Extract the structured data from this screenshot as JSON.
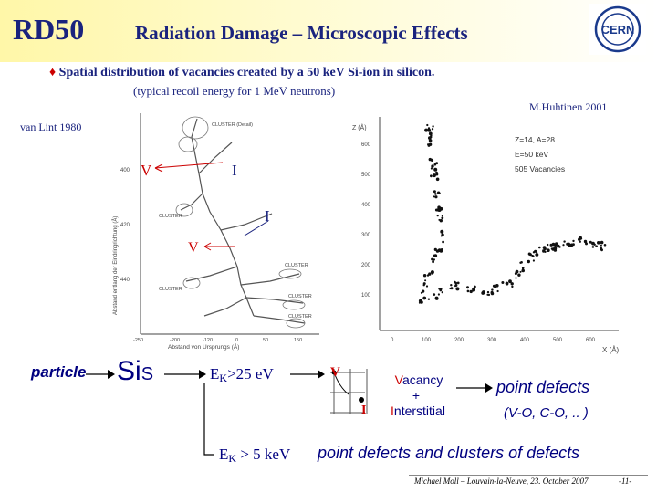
{
  "header": {
    "logo_text": "RD50",
    "title": "Radiation Damage – Microscopic Effects",
    "cern_logo_text": "CERN"
  },
  "intro": {
    "bullet_text": "Spatial distribution of vacancies created by a 50 keV Si-ion in silicon.",
    "sub_text": "(typical recoil energy for 1 MeV neutrons)"
  },
  "left_figure": {
    "citation": "van Lint 1980",
    "labels": {
      "v_upper": "V",
      "i_upper": "I",
      "i_lower": "I",
      "v_lower": "V"
    },
    "clusters": [
      "CLUSTER (Detail)",
      "CLUSTER",
      "CLUSTER",
      "CLUSTER",
      "CLUSTER",
      "CLUSTER"
    ],
    "y_axis_label": "Abstand entlang der Eindringrichtung (Å)",
    "x_axis_label": "Abstand von Ursprungs (Å)",
    "y_ticks": [
      "400",
      "420",
      "440"
    ],
    "x_ticks": [
      "-250",
      "-200",
      "-120",
      "0",
      "50",
      "150"
    ]
  },
  "right_figure": {
    "citation": "M.Huhtinen 2001",
    "z_axis_label": "Z (Å)",
    "x_axis_label": "X (Å)",
    "z_ticks": [
      "600",
      "500",
      "400",
      "300",
      "200",
      "100"
    ],
    "x_ticks": [
      "0",
      "100",
      "200",
      "300",
      "400",
      "500",
      "600"
    ],
    "legend": [
      "Z=14, A=28",
      "E=50 keV",
      "505 Vacancies"
    ]
  },
  "diagram": {
    "particle": "particle",
    "si_main": "Si",
    "si_sub": "S",
    "ek_main": "E",
    "ek_sub": "K",
    "ek_threshold_high": ">25 eV",
    "ek_threshold_low": " > 5 keV",
    "v_label": "V",
    "i_label": "I",
    "vacancy_text": "Vacancy",
    "plus": "+",
    "interstitial_text": "Interstitial",
    "point_defects": "point defects",
    "point_defects_examples": "(V-O, C-O, .. )",
    "clusters_text": "point defects and clusters of defects"
  },
  "footer": {
    "credit": "Michael Moll – Louvain-la-Neuve, 23. October 2007",
    "page": "-11-"
  }
}
